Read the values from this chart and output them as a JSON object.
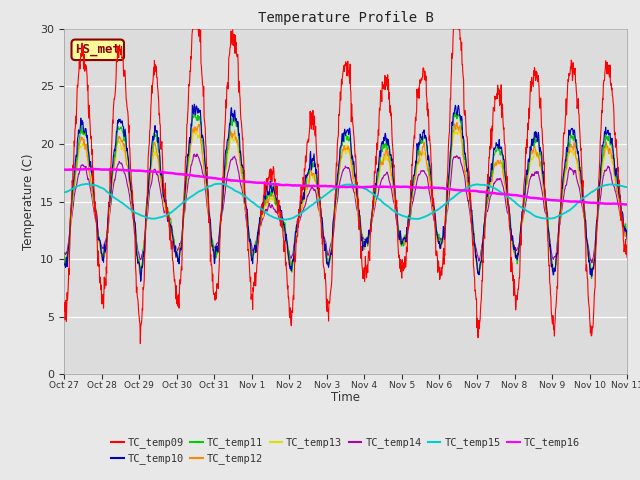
{
  "title": "Temperature Profile B",
  "xlabel": "Time",
  "ylabel": "Temperature (C)",
  "ylim": [
    0,
    30
  ],
  "background_color": "#e8e8e8",
  "plot_bg_color": "#dcdcdc",
  "annotation_text": "HS_met",
  "annotation_color": "#8B0000",
  "annotation_bg": "#ffff99",
  "series_colors": {
    "TC_temp09": "#ff0000",
    "TC_temp10": "#0000bb",
    "TC_temp11": "#00cc00",
    "TC_temp12": "#ff8800",
    "TC_temp13": "#dddd00",
    "TC_temp14": "#aa00aa",
    "TC_temp15": "#00cccc",
    "TC_temp16": "#ff00ff"
  },
  "x_tick_labels": [
    "Oct 27",
    "Oct 28",
    "Oct 29",
    "Oct 30",
    "Oct 31",
    "Nov 1",
    "Nov 2",
    "Nov 3",
    "Nov 4",
    "Nov 5",
    "Nov 6",
    "Nov 7",
    "Nov 8",
    "Nov 9",
    "Nov 10",
    "Nov 11"
  ],
  "yticks": [
    0,
    5,
    10,
    15,
    20,
    25,
    30
  ]
}
